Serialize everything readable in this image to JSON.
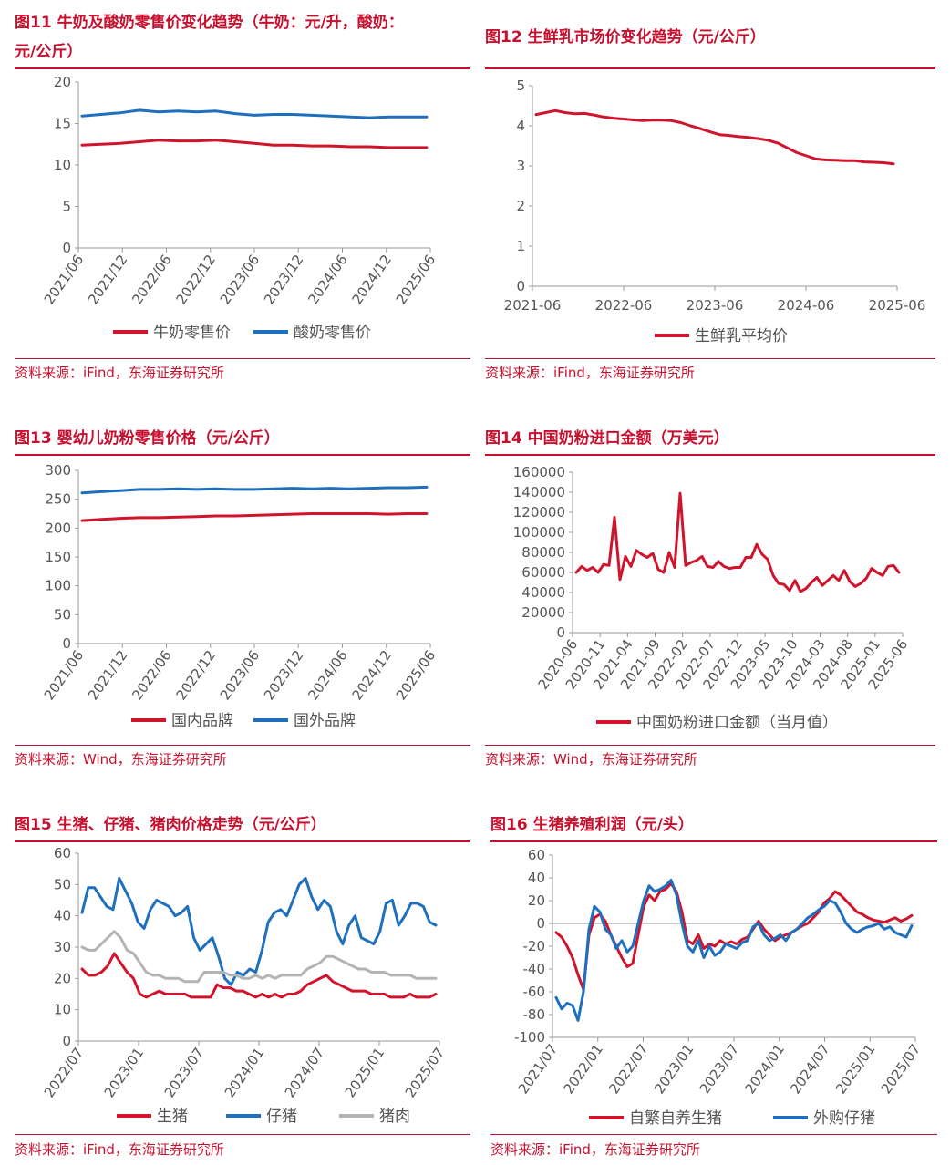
{
  "panels": [
    {
      "id": "fig11",
      "title_line1": "图11  牛奶及酸奶零售价变化趋势（牛奶：元/升，酸奶：",
      "title_line2": "元/公斤）",
      "source": "资料来源：iFind，东海证券研究所",
      "chart_data": {
        "type": "line",
        "xticks": [
          "2021/06",
          "2021/12",
          "2022/06",
          "2022/12",
          "2023/06",
          "2023/12",
          "2024/06",
          "2024/12",
          "2025/06"
        ],
        "x_label_rotated": true,
        "ylim": [
          0,
          20
        ],
        "yticks": [
          0,
          5,
          10,
          15,
          20
        ],
        "series": [
          {
            "name": "牛奶零售价",
            "color": "#d0142c",
            "values": [
              12.4,
              12.5,
              12.6,
              12.8,
              13.0,
              12.9,
              12.9,
              13.0,
              12.8,
              12.6,
              12.4,
              12.4,
              12.3,
              12.3,
              12.2,
              12.2,
              12.1,
              12.1,
              12.1
            ]
          },
          {
            "name": "酸奶零售价",
            "color": "#1e6fbd",
            "values": [
              15.9,
              16.1,
              16.3,
              16.6,
              16.4,
              16.5,
              16.4,
              16.5,
              16.2,
              16.0,
              16.1,
              16.1,
              16.0,
              15.9,
              15.8,
              15.7,
              15.8,
              15.8,
              15.8
            ]
          }
        ]
      }
    },
    {
      "id": "fig12",
      "title_line1": "图12  生鲜乳市场价变化趋势（元/公斤）",
      "source": "资料来源：iFind，东海证券研究所",
      "chart_data": {
        "type": "line",
        "xticks": [
          "2021-06",
          "2022-06",
          "2023-06",
          "2024-06",
          "2025-06"
        ],
        "x_label_rotated": false,
        "ylim": [
          0,
          5
        ],
        "yticks": [
          0,
          1,
          2,
          3,
          4,
          5
        ],
        "series": [
          {
            "name": "生鲜乳平均价",
            "color": "#d0142c",
            "values": [
              4.28,
              4.33,
              4.38,
              4.33,
              4.3,
              4.31,
              4.27,
              4.22,
              4.19,
              4.17,
              4.15,
              4.13,
              4.14,
              4.14,
              4.13,
              4.08,
              4.0,
              3.93,
              3.85,
              3.78,
              3.76,
              3.73,
              3.71,
              3.68,
              3.64,
              3.57,
              3.45,
              3.33,
              3.25,
              3.17,
              3.15,
              3.14,
              3.13,
              3.13,
              3.1,
              3.09,
              3.08,
              3.05
            ]
          }
        ]
      }
    },
    {
      "id": "fig13",
      "title_line1": "图13  婴幼儿奶粉零售价格（元/公斤）",
      "source": "资料来源：Wind，东海证券研究所",
      "chart_data": {
        "type": "line",
        "xticks": [
          "2021/06",
          "2021/12",
          "2022/06",
          "2022/12",
          "2023/06",
          "2023/12",
          "2024/06",
          "2024/12",
          "2025/06"
        ],
        "x_label_rotated": true,
        "ylim": [
          0,
          300
        ],
        "yticks": [
          0,
          50,
          100,
          150,
          200,
          250,
          300
        ],
        "series": [
          {
            "name": "国内品牌",
            "color": "#d0142c",
            "values": [
              213,
              215,
              217,
              218,
              218,
              219,
              220,
              221,
              221,
              222,
              223,
              224,
              225,
              225,
              225,
              225,
              224,
              225,
              225
            ]
          },
          {
            "name": "国外品牌",
            "color": "#1e6fbd",
            "values": [
              261,
              263,
              265,
              267,
              267,
              268,
              267,
              268,
              267,
              267,
              268,
              269,
              268,
              269,
              268,
              269,
              270,
              270,
              271
            ]
          }
        ]
      }
    },
    {
      "id": "fig14",
      "title_line1": "图14  中国奶粉进口金额（万美元）",
      "source": "资料来源：Wind，东海证券研究所",
      "chart_data": {
        "type": "line",
        "xticks": [
          "2020-06",
          "2020-11",
          "2021-04",
          "2021-09",
          "2022-02",
          "2022-07",
          "2022-12",
          "2023-05",
          "2023-10",
          "2024-03",
          "2024-08",
          "2025-01",
          "2025-06"
        ],
        "x_label_rotated": true,
        "ylim": [
          0,
          160000
        ],
        "yticks": [
          0,
          20000,
          40000,
          60000,
          80000,
          100000,
          120000,
          140000,
          160000
        ],
        "series": [
          {
            "name": "中国奶粉进口金额（当月值）",
            "color": "#d0142c",
            "values": [
              60000,
              66000,
              62000,
              65000,
              60000,
              68000,
              67000,
              115000,
              53000,
              76000,
              66000,
              82000,
              78000,
              75000,
              79000,
              63000,
              60000,
              80000,
              65000,
              139000,
              67000,
              70000,
              72000,
              76000,
              66000,
              65000,
              71000,
              66000,
              64000,
              65000,
              65000,
              75000,
              75000,
              88000,
              78000,
              73000,
              57000,
              49000,
              48000,
              42000,
              52000,
              41000,
              44000,
              50000,
              55000,
              47000,
              52000,
              57000,
              52000,
              62000,
              51000,
              46000,
              49000,
              54000,
              64000,
              60000,
              57000,
              66000,
              67000,
              60000
            ]
          }
        ]
      }
    },
    {
      "id": "fig15",
      "title_line1": "图15  生猪、仔猪、猪肉价格走势（元/公斤）",
      "source": "资料来源：iFind，东海证券研究所",
      "chart_data": {
        "type": "line",
        "xticks": [
          "2022/07",
          "2023/01",
          "2023/07",
          "2024/01",
          "2024/07",
          "2025/01",
          "2025/07"
        ],
        "x_label_rotated": true,
        "ylim": [
          0,
          60
        ],
        "yticks": [
          0,
          10,
          20,
          30,
          40,
          50,
          60
        ],
        "series": [
          {
            "name": "生猪",
            "color": "#d0142c",
            "values": [
              23,
              21,
              21,
              22,
              24,
              28,
              25,
              22,
              20,
              15,
              14,
              15,
              16,
              15,
              15,
              15,
              15,
              14,
              14,
              14,
              14,
              18,
              17,
              17,
              16,
              16,
              15,
              14,
              15,
              14,
              15,
              14,
              15,
              15,
              16,
              18,
              19,
              20,
              21,
              19,
              18,
              17,
              16,
              16,
              16,
              15,
              15,
              15,
              14,
              14,
              14,
              15,
              14,
              14,
              14,
              15
            ]
          },
          {
            "name": "仔猪",
            "color": "#1e6fbd",
            "values": [
              41,
              49,
              49,
              46,
              43,
              42,
              52,
              48,
              44,
              38,
              36,
              42,
              45,
              44,
              43,
              40,
              41,
              43,
              33,
              29,
              31,
              33,
              27,
              20,
              18,
              22,
              21,
              23,
              22,
              29,
              38,
              41,
              42,
              40,
              45,
              50,
              52,
              46,
              42,
              45,
              43,
              35,
              31,
              37,
              40,
              33,
              32,
              31,
              35,
              44,
              45,
              37,
              40,
              44,
              44,
              43,
              38,
              37
            ]
          },
          {
            "name": "猪肉",
            "color": "#b4b4b4",
            "values": [
              30,
              29,
              29,
              31,
              33,
              35,
              33,
              29,
              28,
              25,
              22,
              21,
              21,
              20,
              20,
              20,
              19,
              19,
              19,
              22,
              22,
              22,
              22,
              21,
              21,
              20,
              20,
              21,
              20,
              21,
              20,
              21,
              21,
              21,
              21,
              23,
              24,
              25,
              27,
              27,
              26,
              25,
              24,
              23,
              23,
              22,
              22,
              22,
              21,
              21,
              21,
              21,
              20,
              20,
              20,
              20
            ]
          }
        ]
      }
    },
    {
      "id": "fig16",
      "title_line1": "图16  生猪养殖利润（元/头）",
      "source": "资料来源：iFind，东海证券研究所",
      "chart_data": {
        "type": "line",
        "xticks": [
          "2021/07",
          "2022/01",
          "2022/07",
          "2023/01",
          "2023/07",
          "2024/01",
          "2024/07",
          "2025/01",
          "2025/07"
        ],
        "x_label_rotated": true,
        "ylim": [
          -100,
          60
        ],
        "yticks": [
          -100,
          -80,
          -60,
          -40,
          -20,
          0,
          20,
          40,
          60
        ],
        "series": [
          {
            "name": "自繁自养生猪",
            "color": "#d0142c",
            "values": [
              -8,
              -12,
              -20,
              -30,
              -45,
              -58,
              -10,
              5,
              8,
              2,
              -10,
              -20,
              -30,
              -38,
              -35,
              -10,
              15,
              25,
              20,
              28,
              30,
              35,
              28,
              10,
              -15,
              -18,
              -10,
              -22,
              -18,
              -20,
              -15,
              -18,
              -16,
              -18,
              -14,
              -12,
              -5,
              2,
              -5,
              -10,
              -15,
              -12,
              -10,
              -8,
              -5,
              -2,
              0,
              5,
              10,
              18,
              22,
              28,
              25,
              20,
              15,
              10,
              8,
              5,
              3,
              2,
              1,
              3,
              5,
              2,
              4,
              7
            ]
          },
          {
            "name": "外购仔猪",
            "color": "#1e6fbd",
            "values": [
              -65,
              -75,
              -70,
              -72,
              -85,
              -60,
              -5,
              15,
              10,
              -5,
              -10,
              -22,
              -15,
              -25,
              -20,
              0,
              20,
              33,
              28,
              30,
              33,
              38,
              25,
              0,
              -20,
              -25,
              -15,
              -30,
              -20,
              -28,
              -25,
              -18,
              -20,
              -22,
              -17,
              -15,
              -3,
              0,
              -10,
              -15,
              -13,
              -10,
              -15,
              -8,
              -5,
              0,
              5,
              8,
              12,
              15,
              20,
              18,
              10,
              0,
              -5,
              -8,
              -5,
              -3,
              -2,
              0,
              -5,
              -3,
              -8,
              -10,
              -12,
              -2
            ]
          }
        ]
      }
    }
  ]
}
